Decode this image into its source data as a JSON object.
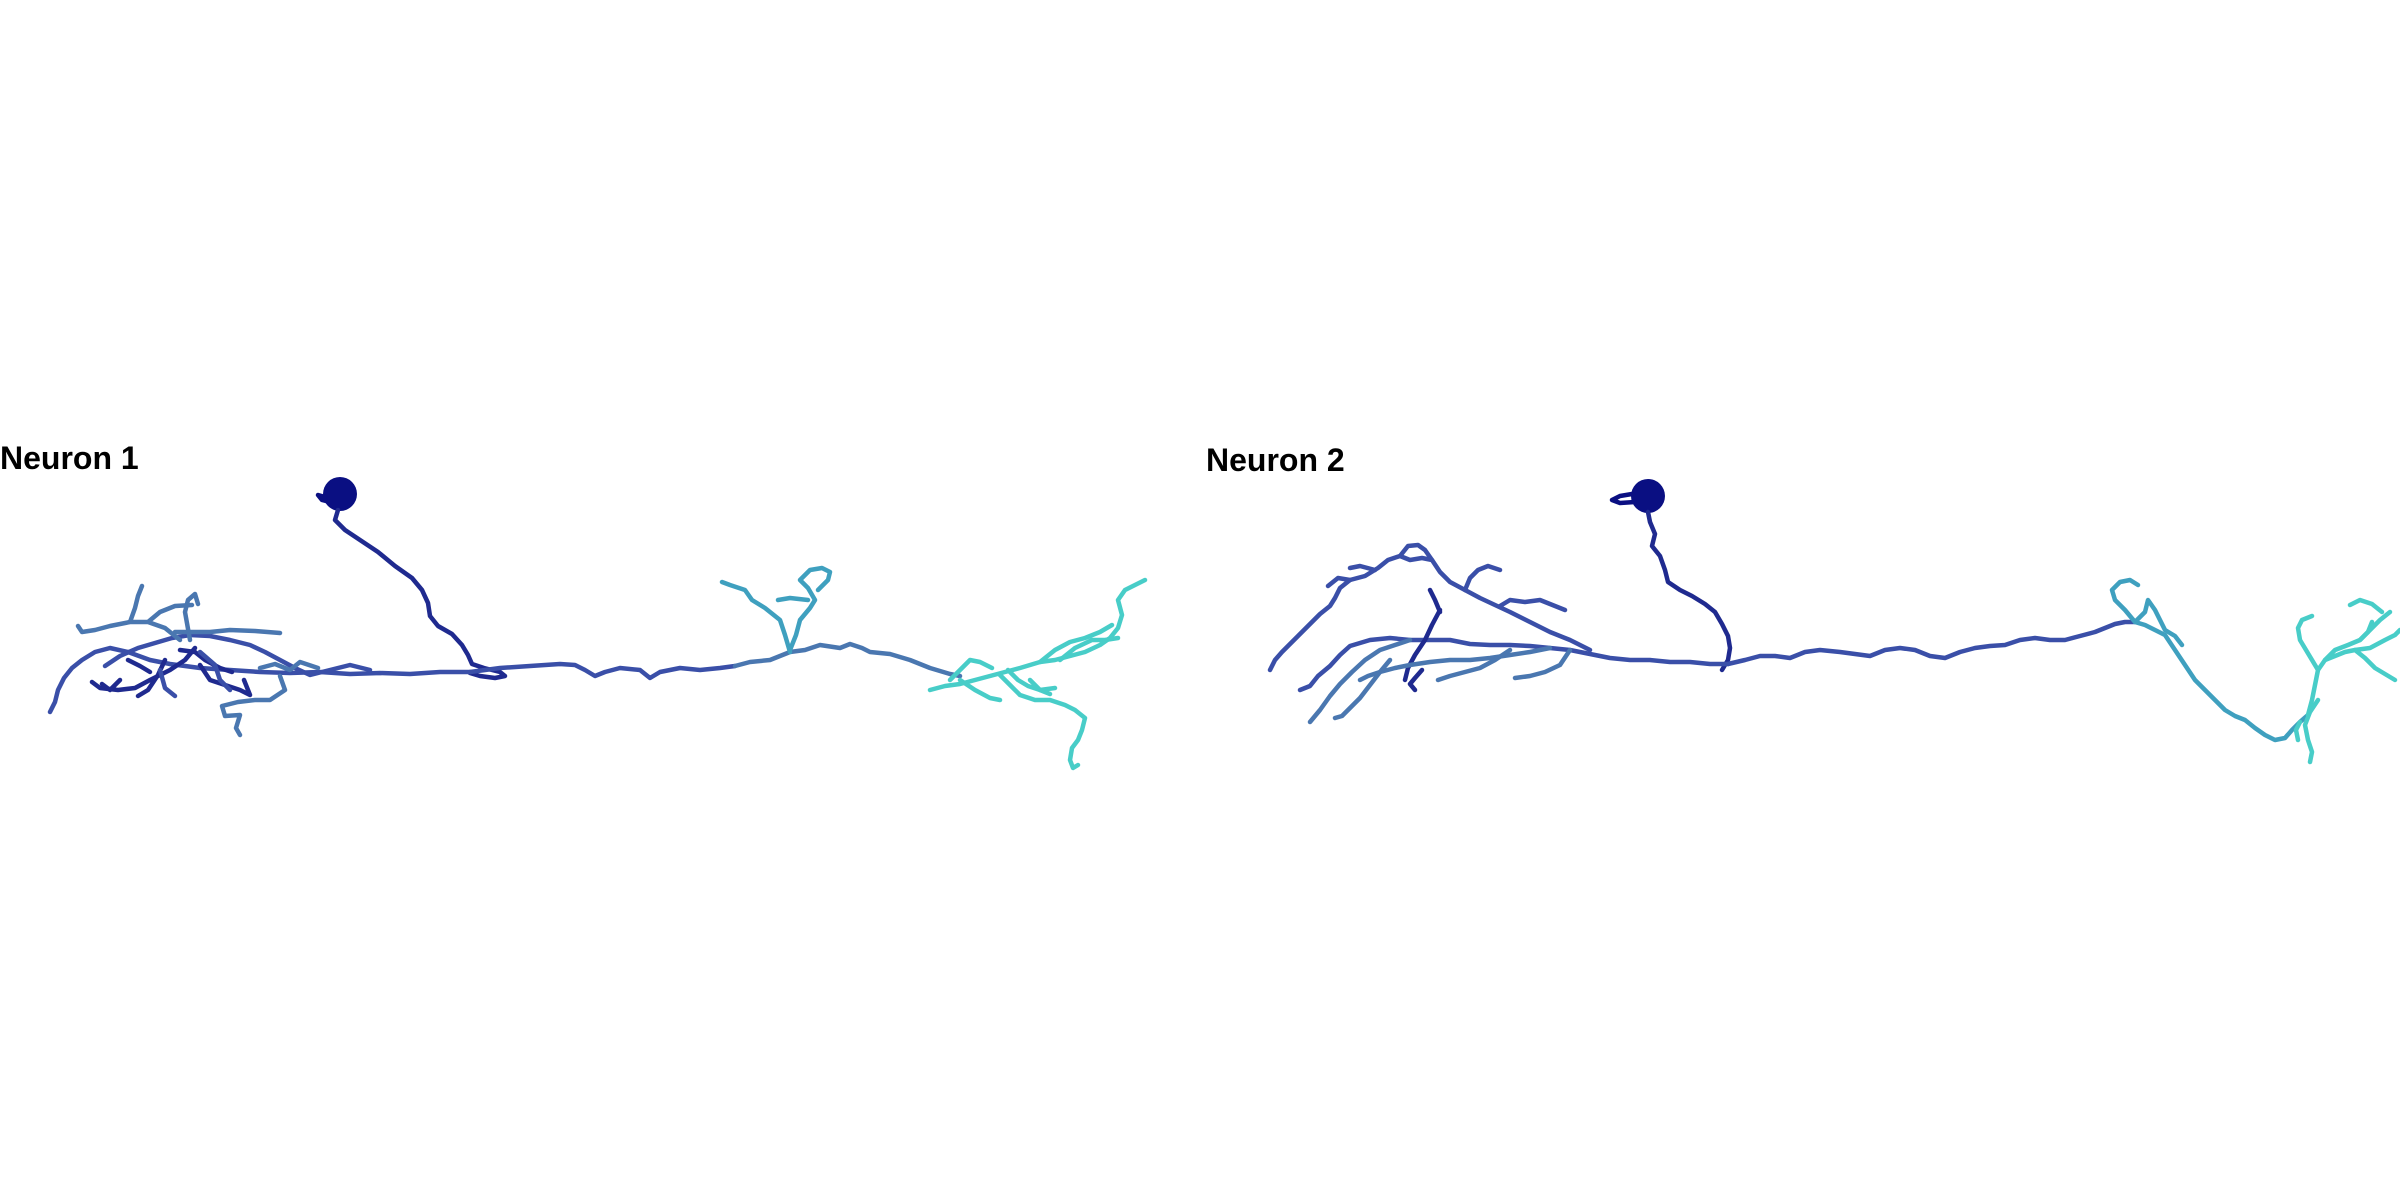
{
  "panels": [
    {
      "title": "Neuron 1"
    },
    {
      "title": "Neuron 2"
    }
  ],
  "colors": {
    "soma": "#0a0f82",
    "proximal": "#1f2a8f",
    "mid_dark": "#3a4fa8",
    "mid": "#4a77b0",
    "mid_light": "#3fa0bf",
    "distal": "#48cdc8"
  }
}
